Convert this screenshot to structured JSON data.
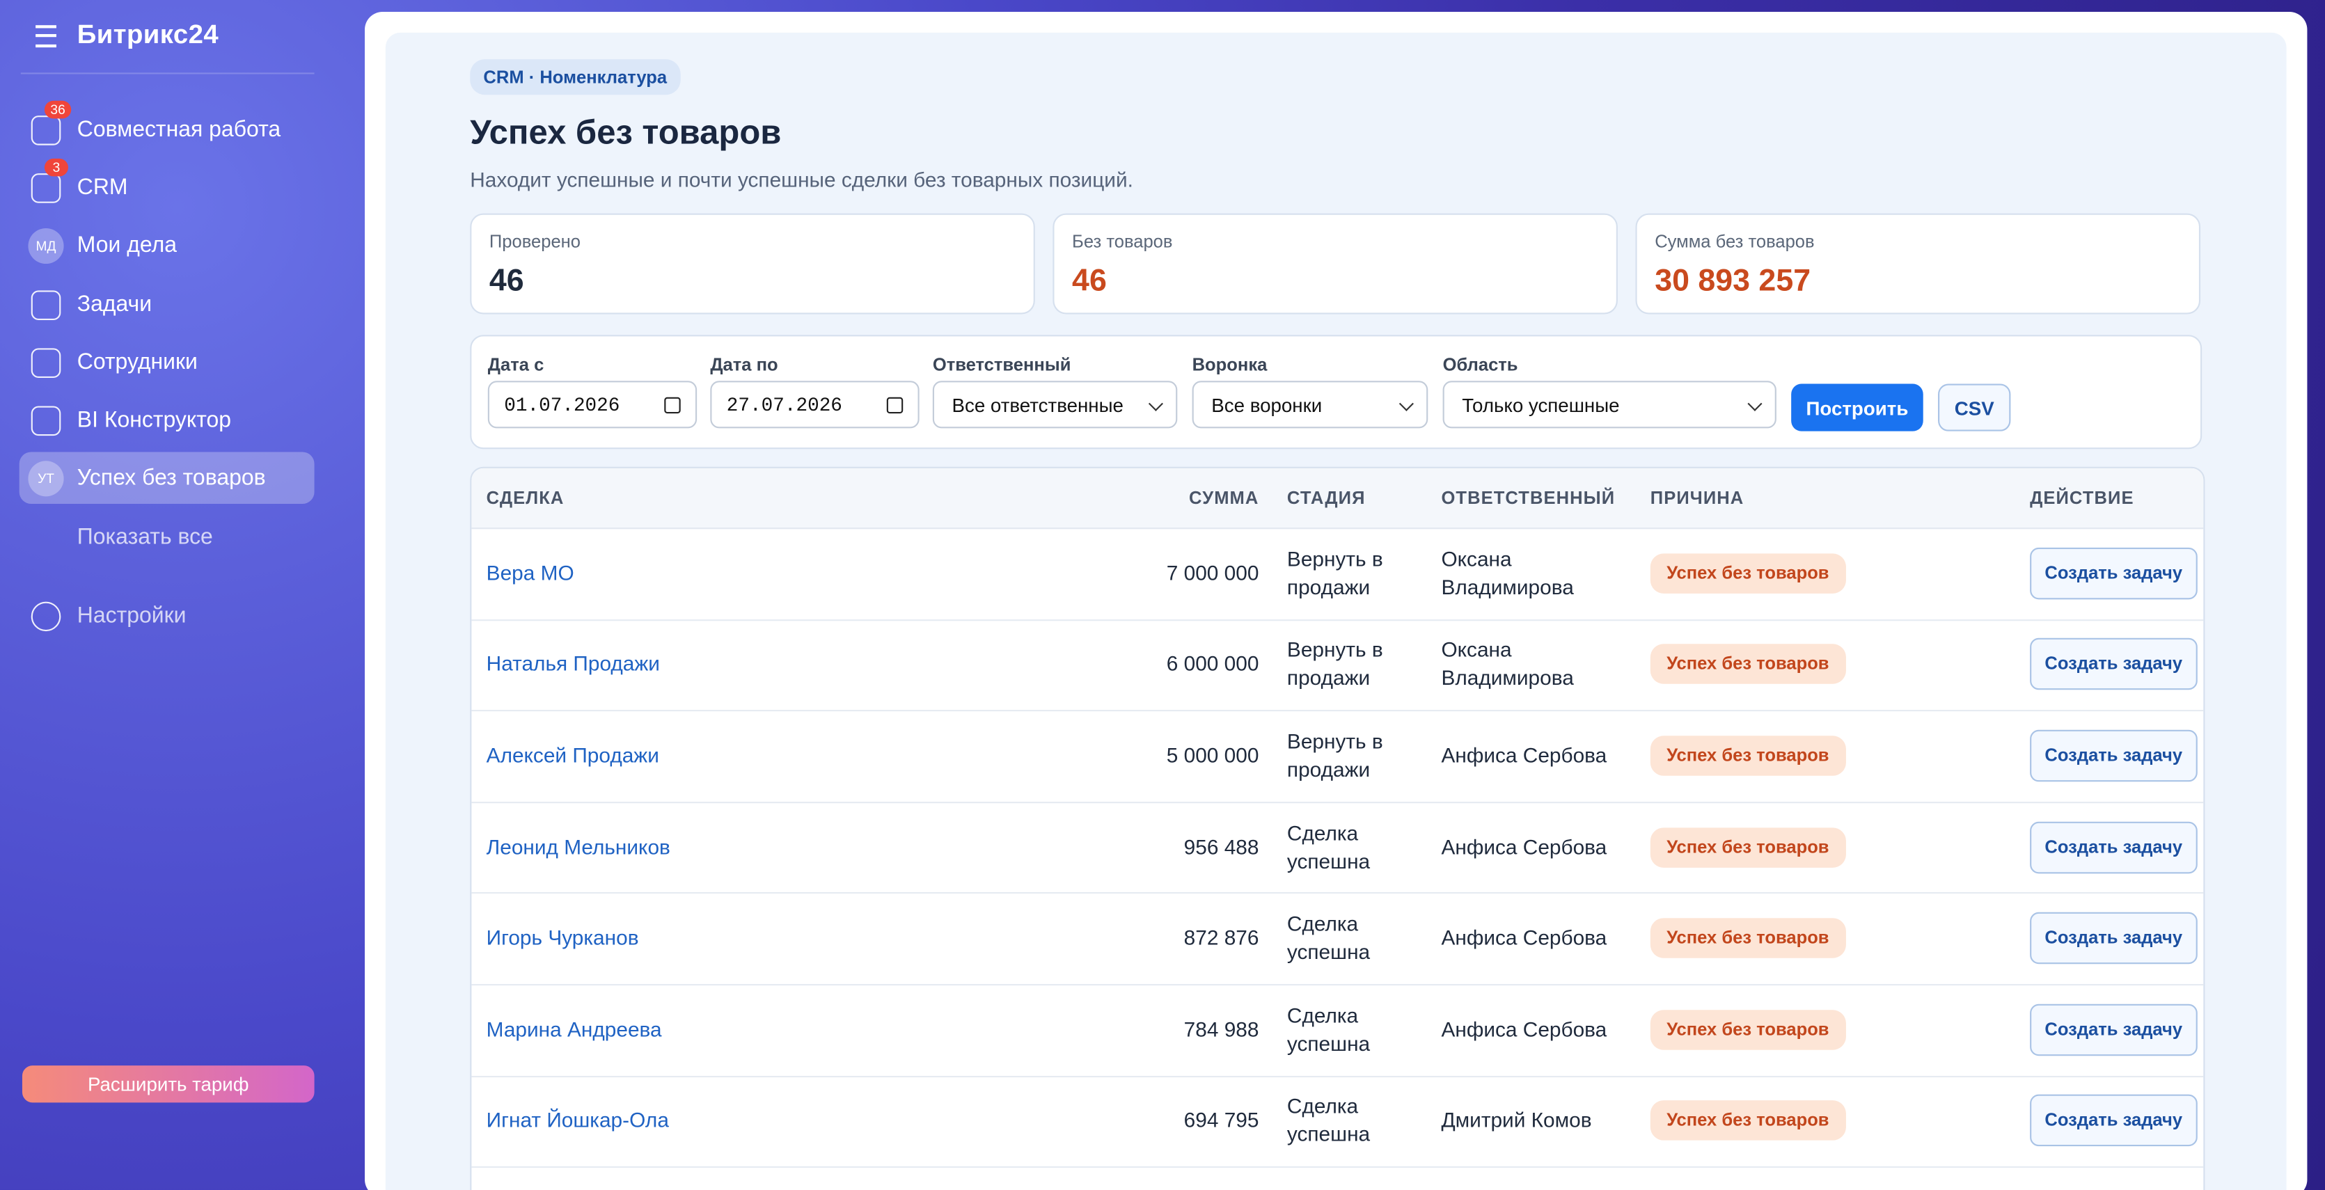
{
  "sidebar": {
    "brand": "Битрикс24",
    "items": [
      {
        "label": "Совместная работа",
        "badge": "36"
      },
      {
        "label": "CRM",
        "badge": "3"
      },
      {
        "label": "Мои дела",
        "avatar": "МД"
      },
      {
        "label": "Задачи"
      },
      {
        "label": "Сотрудники"
      },
      {
        "label": "BI Конструктор"
      },
      {
        "label": "Успех без товаров",
        "avatar": "УТ"
      },
      {
        "label": "Показать все"
      }
    ],
    "settings": "Настройки",
    "upgrade": "Расширить тариф"
  },
  "page": {
    "breadcrumb": "CRM · Номенклатура",
    "title": "Успех без товаров",
    "subtitle": "Находит успешные и почти успешные сделки без товарных позиций.",
    "stats": [
      {
        "label": "Проверено",
        "value": "46"
      },
      {
        "label": "Без товаров",
        "value": "46"
      },
      {
        "label": "Сумма без товаров",
        "value": "30 893 257"
      }
    ],
    "filters": [
      {
        "label": "Дата с",
        "value": "01.07.2026"
      },
      {
        "label": "Дата по",
        "value": "27.07.2026"
      },
      {
        "label": "Ответственный",
        "value": "Все ответственные"
      },
      {
        "label": "Воронка",
        "value": "Все воронки"
      },
      {
        "label": "Область",
        "value": "Только успешные"
      }
    ],
    "buttons": [
      "Построить",
      "CSV"
    ],
    "table": {
      "columns": [
        "СДЕЛКА",
        "СУММА",
        "СТАДИЯ",
        "ОТВЕТСТВЕННЫЙ",
        "ПРИЧИНА",
        "ДЕЙСТВИЕ"
      ],
      "rows": [
        [
          "Вера МО",
          "7 000 000",
          "Вернуть в продажи",
          "Оксана Владимирова",
          "Успех без товаров",
          "Создать задачу"
        ],
        [
          "Наталья Продажи",
          "6 000 000",
          "Вернуть в продажи",
          "Оксана Владимирова",
          "Успех без товаров",
          "Создать задачу"
        ],
        [
          "Алексей Продажи",
          "5 000 000",
          "Вернуть в продажи",
          "Анфиса Сербова",
          "Успех без товаров",
          "Создать задачу"
        ],
        [
          "Леонид Мельников",
          "956 488",
          "Сделка успешна",
          "Анфиса Сербова",
          "Успех без товаров",
          "Создать задачу"
        ],
        [
          "Игорь Чурканов",
          "872 876",
          "Сделка успешна",
          "Анфиса Сербова",
          "Успех без товаров",
          "Создать задачу"
        ],
        [
          "Марина Андреева",
          "784 988",
          "Сделка успешна",
          "Анфиса Сербова",
          "Успех без товаров",
          "Создать задачу"
        ],
        [
          "Игнат Йошкар-Ола",
          "694 795",
          "Сделка успешна",
          "Дмитрий Комов",
          "Успех без товаров",
          "Создать задачу"
        ]
      ]
    }
  }
}
